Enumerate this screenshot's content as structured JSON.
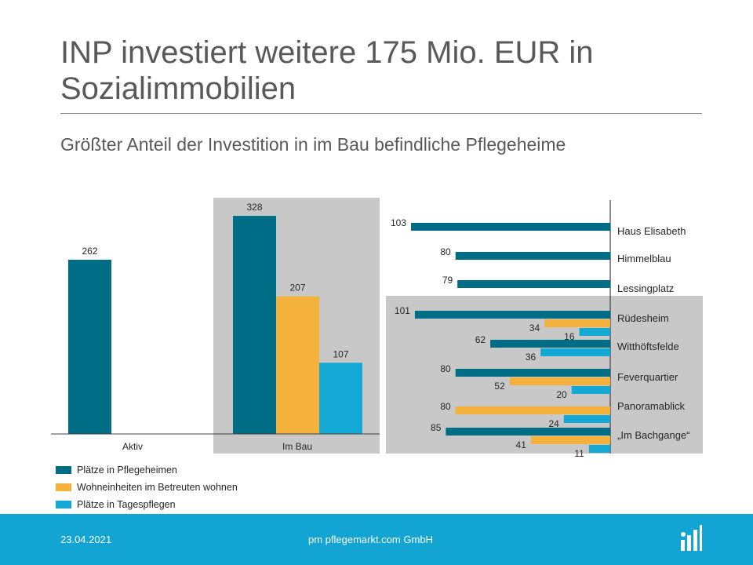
{
  "header": {
    "title": "INP investiert weitere 175 Mio. EUR in Sozialimmobilien",
    "subtitle": "Größter Anteil der Investition in im Bau befindliche Pflegeheime"
  },
  "colors": {
    "pflegeheime": "#006d87",
    "betreutes_wohnen": "#f4b13b",
    "tagespflege": "#14a8d5",
    "shade": "#c8c8c8",
    "footer": "#12a5d4"
  },
  "legend": {
    "items": [
      {
        "label": "Plätze in Pflegeheimen",
        "color_key": "pflegeheime"
      },
      {
        "label": "Wohneinheiten im Betreuten wohnen",
        "color_key": "betreutes_wohnen"
      },
      {
        "label": "Plätze in Tagespflegen",
        "color_key": "tagespflege"
      }
    ]
  },
  "chart_data": [
    {
      "type": "bar",
      "categories": [
        "Aktiv",
        "Im Bau"
      ],
      "series": [
        {
          "name": "Plätze in Pflegeheimen",
          "values": [
            262,
            328
          ]
        },
        {
          "name": "Wohneinheiten im Betreuten wohnen",
          "values": [
            null,
            207
          ]
        },
        {
          "name": "Plätze in Tagespflegen",
          "values": [
            null,
            107
          ]
        }
      ],
      "ylim": [
        0,
        350
      ],
      "grid": false,
      "legend_position": "bottom-left"
    },
    {
      "type": "bar",
      "orientation": "horizontal",
      "categories": [
        "Haus Elisabeth",
        "Himmelblau",
        "Lessingplatz",
        "Rüdesheim",
        "Witthöftsfelde",
        "Feverquartier",
        "Panoramablick",
        "„Im Bachgange“"
      ],
      "status": [
        "Aktiv",
        "Aktiv",
        "Aktiv",
        "Im Bau",
        "Im Bau",
        "Im Bau",
        "Im Bau",
        "Im Bau"
      ],
      "series": [
        {
          "name": "Plätze in Pflegeheimen",
          "values": [
            103,
            80,
            79,
            101,
            62,
            80,
            null,
            85
          ]
        },
        {
          "name": "Wohneinheiten im Betreuten wohnen",
          "values": [
            null,
            null,
            null,
            34,
            null,
            52,
            80,
            41
          ]
        },
        {
          "name": "Plätze in Tagespflegen",
          "values": [
            null,
            null,
            null,
            16,
            36,
            20,
            24,
            11
          ]
        }
      ],
      "xlim": [
        0,
        110
      ],
      "grid": false
    }
  ],
  "footer": {
    "date": "23.04.2021",
    "company": "pm pflegemarkt.com GmbH",
    "logo_icon": "pflegemarkt-logo-icon"
  }
}
